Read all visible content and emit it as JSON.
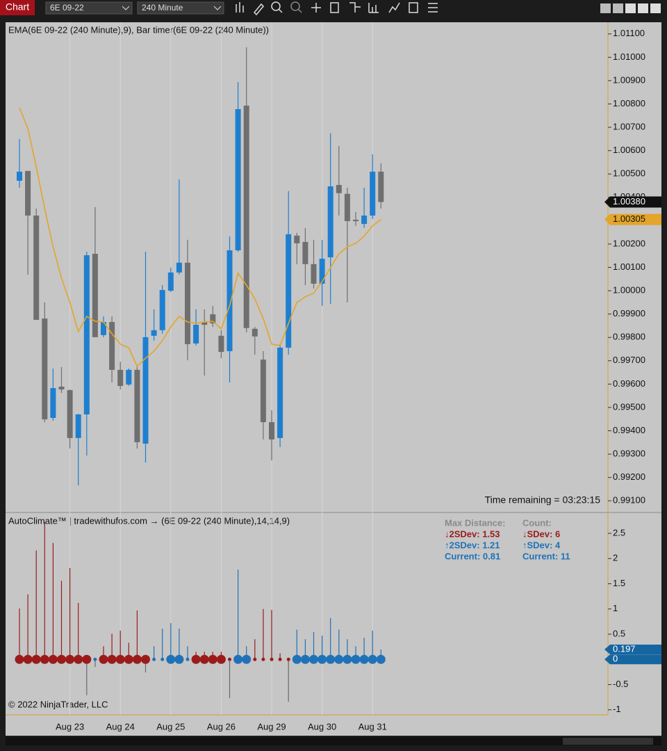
{
  "toolbar": {
    "title": "Chart",
    "instrument": "6E 09-22",
    "interval": "240 Minute"
  },
  "chart_data": [
    {
      "type": "candlestick",
      "title": "EMA(6E 09-22 (240 Minute),9), Bar timer(6E 09-22 (240 Minute))",
      "annotation": "Time remaining = 03:23:15",
      "categories": [
        null,
        null,
        null,
        null,
        null,
        null,
        "Aug 23",
        null,
        null,
        null,
        null,
        null,
        "Aug 24",
        null,
        null,
        null,
        null,
        null,
        "Aug 25",
        null,
        null,
        null,
        null,
        null,
        "Aug 26",
        null,
        null,
        null,
        null,
        null,
        "Aug 29",
        null,
        null,
        null,
        null,
        null,
        "Aug 30",
        null,
        null,
        null,
        null,
        null,
        "Aug 31",
        null
      ],
      "open": [
        1.00471,
        1.00513,
        1.00322,
        0.99881,
        0.99455,
        0.99589,
        0.99574,
        0.99369,
        0.9947,
        1.00158,
        0.9981,
        0.99866,
        0.99661,
        0.99598,
        0.99661,
        0.99345,
        0.99807,
        0.99831,
        1.0,
        1.00078,
        1.0012,
        0.99774,
        0.99866,
        0.99899,
        0.99807,
        0.99741,
        1.00173,
        1.00793,
        0.99837,
        0.99705,
        0.99437,
        0.99369,
        0.99756,
        1.00236,
        1.00209,
        1.00114,
        1.0003,
        1.00143,
        1.00453,
        1.00415,
        1.00304,
        1.00286,
        1.00322,
        1.0051
      ],
      "high": [
        1.0065,
        1.00513,
        1.00352,
        0.9995,
        0.99667,
        0.99673,
        0.99577,
        0.99473,
        1.00167,
        1.00358,
        0.9989,
        0.9989,
        0.99696,
        0.99667,
        0.99682,
        1.00167,
        0.9992,
        1.00024,
        1.00099,
        1.00477,
        1.00218,
        0.9992,
        0.9992,
        0.99935,
        0.99831,
        1.00233,
        1.00894,
        1.01043,
        0.99845,
        0.99741,
        0.99488,
        0.99771,
        1.00427,
        1.00248,
        1.00269,
        1.00218,
        1.00218,
        1.00674,
        1.0062,
        1.00441,
        1.00337,
        1.00441,
        1.00584,
        1.00546
      ],
      "low": [
        1.00441,
        1.00069,
        0.99875,
        0.99437,
        0.99443,
        0.99562,
        0.99324,
        0.99166,
        0.99294,
        0.99801,
        0.99801,
        0.99607,
        0.99577,
        0.99592,
        0.99324,
        0.99264,
        0.99786,
        0.99816,
        0.99994,
        1.00069,
        0.99702,
        0.99765,
        0.99637,
        0.99845,
        0.99711,
        0.99607,
        1.00167,
        0.99822,
        0.99726,
        0.99363,
        0.99273,
        0.9933,
        0.99726,
        1.00114,
        1.00024,
        1.00009,
        0.99935,
        0.99944,
        1.00322,
        0.9995,
        1.00278,
        1.00269,
        1.00307,
        1.00352
      ],
      "close": [
        1.0051,
        1.00322,
        0.99875,
        0.99449,
        0.99583,
        0.99577,
        0.99369,
        0.9947,
        1.00152,
        0.99801,
        0.99866,
        0.99661,
        0.99592,
        0.99661,
        0.99351,
        0.99801,
        0.99831,
        1.00003,
        1.00078,
        1.0012,
        0.99771,
        0.99854,
        0.99854,
        0.9986,
        0.99738,
        1.00173,
        1.00778,
        0.9984,
        0.99804,
        0.99437,
        0.99363,
        0.99756,
        1.00242,
        1.00203,
        1.00114,
        1.0003,
        1.00137,
        1.00447,
        1.00418,
        1.00298,
        1.00298,
        1.00322,
        1.0051,
        1.0038
      ],
      "ema_values": [
        1.00784,
        1.00695,
        1.00531,
        1.00352,
        1.00188,
        1.00054,
        0.9995,
        0.99825,
        0.9989,
        0.99869,
        0.99866,
        0.99816,
        0.99771,
        0.99756,
        0.99676,
        0.99711,
        0.99741,
        0.99786,
        0.99845,
        0.9989,
        0.99866,
        0.9986,
        0.99866,
        0.99869,
        0.99837,
        0.99935,
        1.00075,
        1.00024,
        0.99965,
        0.99881,
        0.99771,
        0.99765,
        0.9986,
        0.9995,
        0.99974,
        0.99989,
        1.00039,
        1.00099,
        1.00158,
        1.00188,
        1.00203,
        1.00233,
        1.00278,
        1.00305
      ],
      "ema_color": "#e3a52a",
      "up_color": "#1e7fd0",
      "down_color": "#6f6f6f",
      "ylim": [
        0.9905,
        1.0115
      ],
      "yticks": [
        {
          "value": 1.011,
          "label": "1.01100"
        },
        {
          "value": 1.01,
          "label": "1.01000"
        },
        {
          "value": 1.009,
          "label": "1.00900"
        },
        {
          "value": 1.008,
          "label": "1.00800"
        },
        {
          "value": 1.007,
          "label": "1.00700"
        },
        {
          "value": 1.006,
          "label": "1.00600"
        },
        {
          "value": 1.005,
          "label": "1.00500"
        },
        {
          "value": 1.004,
          "label": "1.00400"
        },
        {
          "value": 1.002,
          "label": "1.00200"
        },
        {
          "value": 1.001,
          "label": "1.00100"
        },
        {
          "value": 1.0,
          "label": "1.00000"
        },
        {
          "value": 0.999,
          "label": "0.99900"
        },
        {
          "value": 0.998,
          "label": "0.99800"
        },
        {
          "value": 0.997,
          "label": "0.99700"
        },
        {
          "value": 0.996,
          "label": "0.99600"
        },
        {
          "value": 0.995,
          "label": "0.99500"
        },
        {
          "value": 0.994,
          "label": "0.99400"
        },
        {
          "value": 0.993,
          "label": "0.99300"
        },
        {
          "value": 0.992,
          "label": "0.99200"
        },
        {
          "value": 0.991,
          "label": "0.99100"
        }
      ],
      "markers": [
        {
          "value": 1.0038,
          "label": "1.00380"
        },
        {
          "value": 1.00305,
          "label": "1.00305"
        }
      ],
      "marker_colors": [
        "#111111",
        "#e3a52a"
      ],
      "marker_text_colors": [
        "#ffffff",
        "#111111"
      ]
    },
    {
      "type": "lollipop",
      "title": "AutoClimate™ | tradewithufos.com → (6E 09-22 (240 Minute),14,14,9)",
      "footer": "© 2022 NinjaTrader, LLC",
      "values": [
        1.01,
        1.29,
        2.16,
        2.72,
        2.31,
        1.56,
        1.81,
        1.12,
        -0.71,
        -0.15,
        0.26,
        0.51,
        0.57,
        0.33,
        0.97,
        -0.26,
        0.26,
        0.61,
        0.72,
        0.61,
        0.26,
        0.15,
        0.15,
        0.15,
        0.15,
        -0.77,
        1.78,
        0.26,
        0.4,
        1.0,
        0.98,
        0.12,
        -0.84,
        0.59,
        0.4,
        0.54,
        0.47,
        0.82,
        0.59,
        0.4,
        0.26,
        0.43,
        0.57,
        0.197
      ],
      "stem_colors": [
        "#9b1b1b",
        "#9b1b1b",
        "#9b1b1b",
        "#9b1b1b",
        "#9b1b1b",
        "#9b1b1b",
        "#9b1b1b",
        "#9b1b1b",
        "#6a6a6a",
        "#6a6a6a",
        "#9b1b1b",
        "#9b1b1b",
        "#9b1b1b",
        "#9b1b1b",
        "#9b1b1b",
        "#6a6a6a",
        "#1f72b8",
        "#1f72b8",
        "#1f72b8",
        "#1f72b8",
        "#1f72b8",
        "#9b1b1b",
        "#9b1b1b",
        "#9b1b1b",
        "#9b1b1b",
        "#6a6a6a",
        "#1f72b8",
        "#1f72b8",
        "#9b1b1b",
        "#9b1b1b",
        "#9b1b1b",
        "#9b1b1b",
        "#6a6a6a",
        "#1f72b8",
        "#1f72b8",
        "#1f72b8",
        "#1f72b8",
        "#1f72b8",
        "#1f72b8",
        "#1f72b8",
        "#1f72b8",
        "#1f72b8",
        "#1f72b8",
        "#1f72b8"
      ],
      "dot_colors": [
        "#9b1b1b",
        "#9b1b1b",
        "#9b1b1b",
        "#9b1b1b",
        "#9b1b1b",
        "#9b1b1b",
        "#9b1b1b",
        "#9b1b1b",
        "#9b1b1b",
        "#1f72b8",
        "#9b1b1b",
        "#9b1b1b",
        "#9b1b1b",
        "#9b1b1b",
        "#9b1b1b",
        "#9b1b1b",
        "#1f72b8",
        "#1f72b8",
        "#1f72b8",
        "#1f72b8",
        "#1f72b8",
        "#9b1b1b",
        "#9b1b1b",
        "#9b1b1b",
        "#9b1b1b",
        "#9b1b1b",
        "#1f72b8",
        "#1f72b8",
        "#9b1b1b",
        "#9b1b1b",
        "#9b1b1b",
        "#9b1b1b",
        "#9b1b1b",
        "#1f72b8",
        "#1f72b8",
        "#1f72b8",
        "#1f72b8",
        "#1f72b8",
        "#1f72b8",
        "#1f72b8",
        "#1f72b8",
        "#1f72b8",
        "#1f72b8",
        "#1f72b8"
      ],
      "dot_large": [
        true,
        true,
        true,
        true,
        true,
        true,
        true,
        true,
        true,
        false,
        true,
        true,
        true,
        true,
        true,
        true,
        false,
        false,
        true,
        true,
        false,
        true,
        true,
        true,
        true,
        false,
        true,
        true,
        false,
        false,
        false,
        false,
        false,
        true,
        true,
        true,
        true,
        true,
        true,
        true,
        true,
        true,
        true,
        true
      ],
      "ylim": [
        -1.1,
        2.9
      ],
      "yticks": [
        2.5,
        2,
        1.5,
        1,
        0.5,
        -0.5,
        -1
      ],
      "markers": [
        0.197,
        0
      ],
      "marker_color": "#1565a0",
      "stats": [
        [
          "Max Distance:",
          "↓2SDev: 1.53",
          "↑2SDev: 1.21",
          "Current: 0.81"
        ],
        [
          "Count:",
          "↓SDev: 6",
          "↑SDev: 4",
          "Current: 11"
        ]
      ]
    }
  ]
}
